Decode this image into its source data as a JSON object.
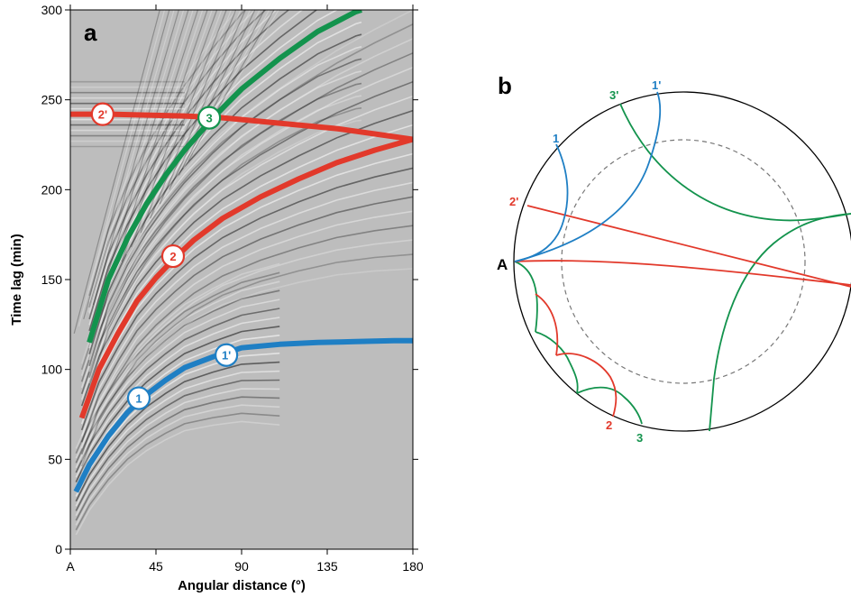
{
  "panel_a": {
    "letter": "a",
    "y_axis_title": "Time lag (min)",
    "x_axis_title": "Angular distance  (°)",
    "y_ticks": [
      "0",
      "50",
      "100",
      "150",
      "200",
      "250",
      "300"
    ],
    "x_ticks": [
      "A",
      "45",
      "90",
      "135",
      "180"
    ],
    "colors": {
      "blue": "#1f7fc4",
      "red": "#e2392b",
      "green": "#13934d"
    },
    "chart_data": {
      "type": "line",
      "xlim": [
        0,
        180
      ],
      "ylim": [
        0,
        300
      ],
      "grid": false,
      "series": [
        {
          "name": "1",
          "color": "blue",
          "x": [
            3,
            10,
            20,
            30,
            40,
            50,
            60,
            75,
            90,
            110,
            130,
            150,
            170,
            180
          ],
          "y": [
            32,
            47,
            63,
            76,
            86,
            94,
            101,
            107,
            112,
            114,
            115,
            115.5,
            116,
            116
          ]
        },
        {
          "name": "2",
          "color": "red",
          "x": [
            6,
            15,
            25,
            35,
            45,
            55,
            65,
            80,
            100,
            120,
            140,
            160,
            180
          ],
          "y": [
            73,
            100,
            120,
            138,
            151,
            162,
            172,
            184,
            196,
            206,
            215,
            222,
            228
          ]
        },
        {
          "name": "2'",
          "color": "red",
          "x": [
            0,
            20,
            40,
            60,
            80,
            100,
            120,
            140,
            160,
            180
          ],
          "y": [
            242,
            242,
            241.5,
            241,
            240,
            238,
            236,
            234,
            231,
            228
          ]
        },
        {
          "name": "3",
          "color": "green",
          "x": [
            10,
            20,
            30,
            40,
            50,
            60,
            75,
            90,
            110,
            130,
            150,
            153
          ],
          "y": [
            115,
            150,
            173,
            192,
            208,
            222,
            240,
            256,
            273,
            288,
            299,
            300
          ]
        }
      ],
      "badges": [
        {
          "label": "1",
          "color": "blue",
          "x": 36,
          "y": 84
        },
        {
          "label": "1'",
          "color": "blue",
          "x": 82,
          "y": 108
        },
        {
          "label": "2",
          "color": "red",
          "x": 54,
          "y": 163
        },
        {
          "label": "2'",
          "color": "red",
          "x": 17,
          "y": 242
        },
        {
          "label": "3",
          "color": "green",
          "x": 73,
          "y": 240
        }
      ]
    }
  },
  "panel_b": {
    "letter": "b",
    "source_label": "A",
    "ray_labels": [
      {
        "text": "1",
        "color": "blue"
      },
      {
        "text": "1'",
        "color": "blue"
      },
      {
        "text": "2",
        "color": "red"
      },
      {
        "text": "2'",
        "color": "red"
      },
      {
        "text": "3",
        "color": "green"
      },
      {
        "text": "3'",
        "color": "green"
      }
    ]
  }
}
